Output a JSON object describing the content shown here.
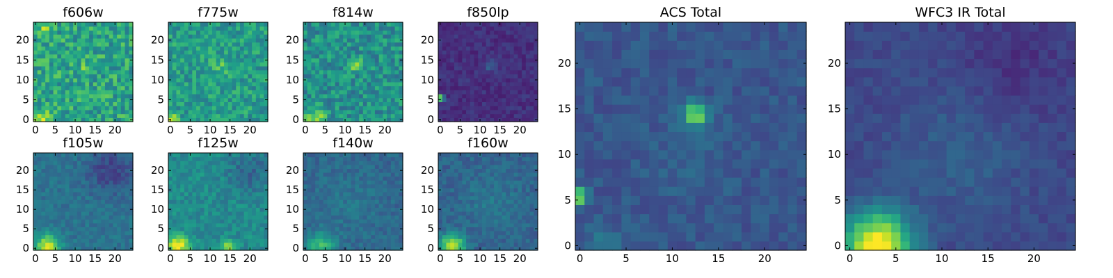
{
  "figure": {
    "colormap": "viridis",
    "cmap_stops": [
      "#440154",
      "#482878",
      "#3e4989",
      "#31688e",
      "#26828e",
      "#1f9e89",
      "#35b779",
      "#6ece58",
      "#b5de2b",
      "#fde725"
    ]
  },
  "chart_data": [
    {
      "type": "heatmap",
      "title": "f606w",
      "grid_size": 25,
      "xticks": [
        0,
        5,
        10,
        15,
        20
      ],
      "yticks": [
        0,
        5,
        10,
        15,
        20
      ],
      "xlim": [
        0,
        24
      ],
      "ylim": [
        0,
        24
      ],
      "background": 0.58,
      "noise": 0.18,
      "peaks": [
        {
          "x": 12.5,
          "y": 12.5,
          "amp": 0.22,
          "sigma": 1.2
        },
        {
          "x": 1.5,
          "y": 0.5,
          "amp": 0.35,
          "sigma": 1.3
        },
        {
          "x": 2.5,
          "y": 23.5,
          "amp": 0.25,
          "sigma": 1.2
        }
      ]
    },
    {
      "type": "heatmap",
      "title": "f775w",
      "grid_size": 25,
      "xticks": [
        0,
        5,
        10,
        15,
        20
      ],
      "yticks": [
        0,
        5,
        10,
        15,
        20
      ],
      "xlim": [
        0,
        24
      ],
      "ylim": [
        0,
        24
      ],
      "background": 0.55,
      "noise": 0.15,
      "peaks": [
        {
          "x": 12.5,
          "y": 13.5,
          "amp": 0.15,
          "sigma": 1.5
        },
        {
          "x": 0.5,
          "y": 0.5,
          "amp": 0.35,
          "sigma": 1.0
        }
      ]
    },
    {
      "type": "heatmap",
      "title": "f814w",
      "grid_size": 25,
      "xticks": [
        0,
        5,
        10,
        15,
        20
      ],
      "yticks": [
        0,
        5,
        10,
        15,
        20
      ],
      "xlim": [
        0,
        24
      ],
      "ylim": [
        0,
        24
      ],
      "background": 0.5,
      "noise": 0.16,
      "peaks": [
        {
          "x": 12.5,
          "y": 14.0,
          "amp": 0.3,
          "sigma": 1.2
        },
        {
          "x": 2.5,
          "y": 0.5,
          "amp": 0.35,
          "sigma": 1.8
        }
      ]
    },
    {
      "type": "heatmap",
      "title": "f850lp",
      "grid_size": 25,
      "xticks": [
        0,
        5,
        10,
        15,
        20
      ],
      "yticks": [
        0,
        5,
        10,
        15,
        20
      ],
      "xlim": [
        0,
        24
      ],
      "ylim": [
        0,
        24
      ],
      "background": 0.14,
      "noise": 0.06,
      "peaks": [
        {
          "x": 12.5,
          "y": 13.5,
          "amp": 0.15,
          "sigma": 1.0
        },
        {
          "x": 0.0,
          "y": 5.5,
          "amp": 0.85,
          "sigma": 0.6
        }
      ]
    },
    {
      "type": "heatmap",
      "title": "f105w",
      "grid_size": 25,
      "xticks": [
        0,
        5,
        10,
        15,
        20
      ],
      "yticks": [
        0,
        5,
        10,
        15,
        20
      ],
      "xlim": [
        0,
        24
      ],
      "ylim": [
        0,
        24
      ],
      "background": 0.38,
      "noise": 0.07,
      "peaks": [
        {
          "x": 3.0,
          "y": 0.5,
          "amp": 0.55,
          "sigma": 2.2
        },
        {
          "x": 19.0,
          "y": 20.0,
          "amp": -0.18,
          "sigma": 4.0
        }
      ]
    },
    {
      "type": "heatmap",
      "title": "f125w",
      "grid_size": 25,
      "xticks": [
        0,
        5,
        10,
        15,
        20
      ],
      "yticks": [
        0,
        5,
        10,
        15,
        20
      ],
      "xlim": [
        0,
        24
      ],
      "ylim": [
        0,
        24
      ],
      "background": 0.48,
      "noise": 0.09,
      "peaks": [
        {
          "x": 2.0,
          "y": 0.5,
          "amp": 0.5,
          "sigma": 2.0
        },
        {
          "x": 14.5,
          "y": 0.5,
          "amp": 0.4,
          "sigma": 1.0
        },
        {
          "x": 20.0,
          "y": 20.0,
          "amp": -0.15,
          "sigma": 4.0
        }
      ]
    },
    {
      "type": "heatmap",
      "title": "f140w",
      "grid_size": 25,
      "xticks": [
        0,
        5,
        10,
        15,
        20
      ],
      "yticks": [
        0,
        5,
        10,
        15,
        20
      ],
      "xlim": [
        0,
        24
      ],
      "ylim": [
        0,
        24
      ],
      "background": 0.33,
      "noise": 0.07,
      "peaks": [
        {
          "x": 4.0,
          "y": 0.5,
          "amp": 0.35,
          "sigma": 2.5
        },
        {
          "x": 11.0,
          "y": 11.0,
          "amp": 0.06,
          "sigma": 6.0
        }
      ]
    },
    {
      "type": "heatmap",
      "title": "f160w",
      "grid_size": 25,
      "xticks": [
        0,
        5,
        10,
        15,
        20
      ],
      "yticks": [
        0,
        5,
        10,
        15,
        20
      ],
      "xlim": [
        0,
        24
      ],
      "ylim": [
        0,
        24
      ],
      "background": 0.32,
      "noise": 0.07,
      "peaks": [
        {
          "x": 3.0,
          "y": 0.5,
          "amp": 0.62,
          "sigma": 2.2
        },
        {
          "x": 13.0,
          "y": 12.0,
          "amp": 0.08,
          "sigma": 5.0
        }
      ]
    },
    {
      "type": "heatmap",
      "title": "ACS Total",
      "grid_size": 25,
      "xticks": [
        0,
        5,
        10,
        15,
        20
      ],
      "yticks": [
        0,
        5,
        10,
        15,
        20
      ],
      "xlim": [
        0,
        24
      ],
      "ylim": [
        0,
        24
      ],
      "background": 0.27,
      "noise": 0.06,
      "peaks": [
        {
          "x": 12.5,
          "y": 14.5,
          "amp": 0.58,
          "sigma": 0.9
        },
        {
          "x": 0.0,
          "y": 5.5,
          "amp": 0.62,
          "sigma": 0.6
        },
        {
          "x": 2.5,
          "y": 0.0,
          "amp": 0.12,
          "sigma": 1.5
        },
        {
          "x": 12.0,
          "y": 10.0,
          "amp": 0.05,
          "sigma": 3.0
        }
      ]
    },
    {
      "type": "heatmap",
      "title": "WFC3 IR Total",
      "grid_size": 25,
      "xticks": [
        0,
        5,
        10,
        15,
        20
      ],
      "yticks": [
        0,
        5,
        10,
        15,
        20
      ],
      "xlim": [
        0,
        24
      ],
      "ylim": [
        0,
        24
      ],
      "background": 0.22,
      "noise": 0.045,
      "peaks": [
        {
          "x": 3.0,
          "y": 0.0,
          "amp": 0.82,
          "sigma": 2.6
        },
        {
          "x": 12.0,
          "y": 10.0,
          "amp": 0.08,
          "sigma": 5.0
        },
        {
          "x": 18.0,
          "y": 20.0,
          "amp": -0.08,
          "sigma": 4.0
        }
      ]
    }
  ]
}
